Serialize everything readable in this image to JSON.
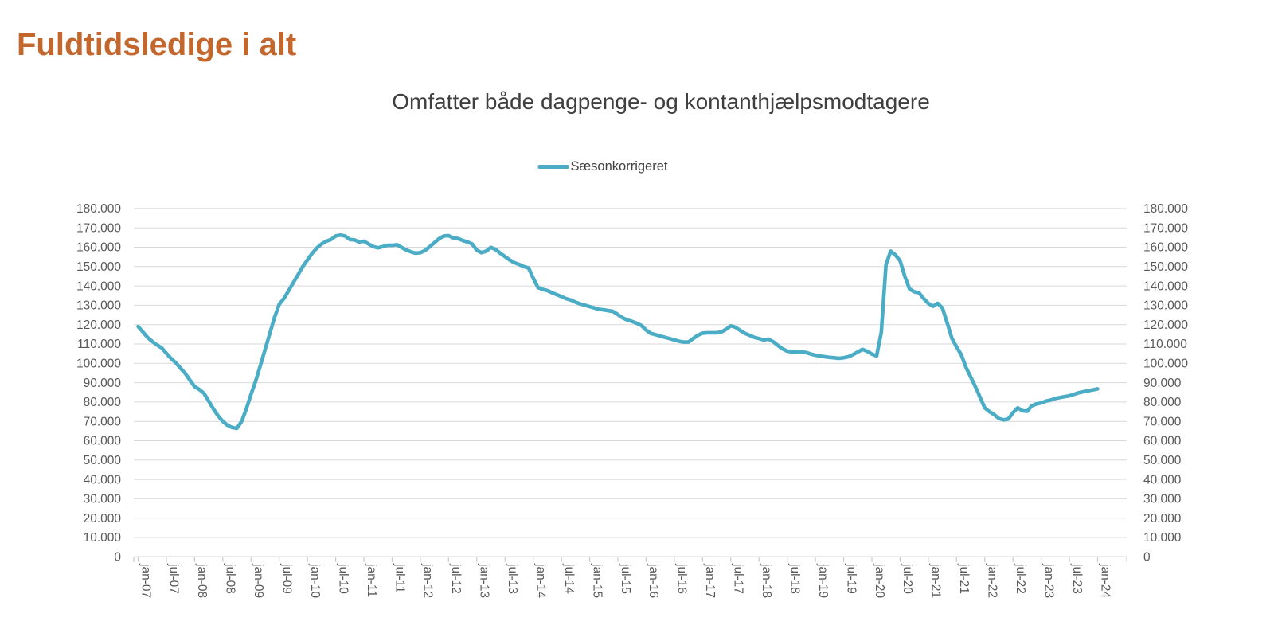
{
  "page": {
    "title": "Fuldtidsledige i alt"
  },
  "chart": {
    "subtitle": "Omfatter både dagpenge- og kontanthjælpsmodtagere",
    "legend": {
      "label": "Sæsonkorrigeret"
    }
  },
  "colors": {
    "title": "#C4672D",
    "subtitle": "#3F3F3F",
    "legend_text": "#404040",
    "series_line": "#4BACC6",
    "axis_text": "#595959",
    "gridline": "#D9D9D9",
    "axis_line": "#C9C9C9"
  },
  "chart_data": {
    "type": "line",
    "title": "Omfatter både dagpenge- og kontanthjælpsmodtagere",
    "legend_position": "top-center",
    "grid": "horizontal",
    "x": {
      "start": "jan-07",
      "end": "jan-24",
      "frequency": "monthly",
      "tick_every_months": 6,
      "tick_labels": [
        "jan-07",
        "jul-07",
        "jan-08",
        "jul-08",
        "jan-09",
        "jul-09",
        "jan-10",
        "jul-10",
        "jan-11",
        "jul-11",
        "jan-12",
        "jul-12",
        "jan-13",
        "jul-13",
        "jan-14",
        "jul-14",
        "jan-15",
        "jul-15",
        "jan-16",
        "jul-16",
        "jan-17",
        "jul-17",
        "jan-18",
        "jul-18",
        "jan-19",
        "jul-19",
        "jan-20",
        "jul-20",
        "jan-21",
        "jul-21",
        "jan-22",
        "jul-22",
        "jan-23",
        "jul-23",
        "jan-24"
      ]
    },
    "y": {
      "min": 0,
      "max": 180000,
      "tick_step": 10000,
      "labels_on_both_sides": true,
      "tick_labels": [
        "0",
        "10.000",
        "20.000",
        "30.000",
        "40.000",
        "50.000",
        "60.000",
        "70.000",
        "80.000",
        "90.000",
        "100.000",
        "110.000",
        "120.000",
        "130.000",
        "140.000",
        "150.000",
        "160.000",
        "170.000",
        "180.000"
      ]
    },
    "series": [
      {
        "name": "Sæsonkorrigeret",
        "color": "#4BACC6",
        "values": [
          119000,
          116200,
          113400,
          111300,
          109500,
          108000,
          105200,
          102500,
          100300,
          97500,
          94800,
          91300,
          88000,
          86500,
          84500,
          80500,
          76400,
          72900,
          70000,
          68000,
          66800,
          66400,
          70000,
          76500,
          84000,
          91000,
          99000,
          107300,
          115500,
          123800,
          130500,
          133500,
          137600,
          141700,
          145800,
          150000,
          153400,
          156900,
          159600,
          161700,
          163100,
          164000,
          165800,
          166300,
          165800,
          164000,
          163800,
          162700,
          163100,
          161700,
          160300,
          159700,
          160300,
          161000,
          161000,
          161300,
          159900,
          158600,
          157600,
          156900,
          157200,
          158300,
          160300,
          162400,
          164500,
          165800,
          166000,
          164800,
          164500,
          163500,
          162700,
          161700,
          158500,
          157200,
          158000,
          159900,
          158800,
          156900,
          155200,
          153400,
          152000,
          151100,
          150000,
          149300,
          144000,
          139200,
          138200,
          137600,
          136500,
          135500,
          134500,
          133400,
          132700,
          131600,
          130700,
          130000,
          129300,
          128600,
          127900,
          127600,
          127200,
          126800,
          125200,
          123500,
          122400,
          121700,
          120700,
          119600,
          117200,
          115500,
          114800,
          114100,
          113400,
          112800,
          112100,
          111400,
          111000,
          111000,
          112800,
          114500,
          115600,
          115800,
          115800,
          115800,
          116200,
          117600,
          119400,
          118600,
          117000,
          115500,
          114500,
          113400,
          112800,
          112100,
          112500,
          111200,
          109300,
          107500,
          106300,
          105900,
          105900,
          105900,
          105600,
          104800,
          104200,
          103800,
          103400,
          103100,
          102900,
          102600,
          102900,
          103400,
          104500,
          105900,
          107200,
          106200,
          104800,
          103800,
          116000,
          151000,
          158000,
          156000,
          153000,
          145000,
          138500,
          137000,
          136500,
          133500,
          131000,
          129500,
          131000,
          128500,
          121000,
          113000,
          108500,
          104500,
          98000,
          93000,
          88000,
          82500,
          77000,
          75000,
          73500,
          71500,
          70800,
          71200,
          74500,
          77000,
          75500,
          75200,
          78000,
          79000,
          79500,
          80500,
          81000,
          81800,
          82300,
          82800,
          83200,
          84000,
          84800,
          85300,
          85800,
          86300,
          86800
        ]
      }
    ]
  }
}
